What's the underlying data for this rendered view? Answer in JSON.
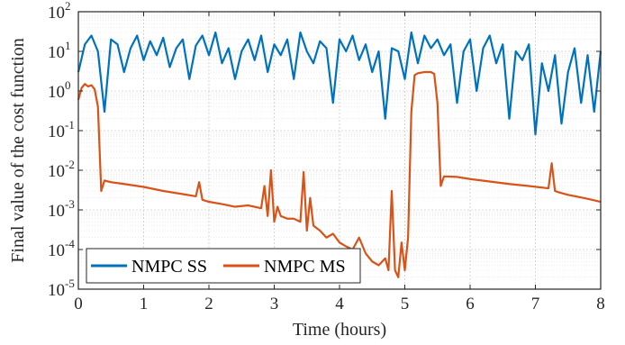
{
  "chart_data": {
    "type": "line",
    "title": "",
    "xlabel": "Time (hours)",
    "ylabel": "Final value of the cost function",
    "xlim": [
      0,
      8
    ],
    "ylim_exponents": [
      -5,
      2
    ],
    "yscale": "log",
    "grid": true,
    "minor_grid": true,
    "legend_position": "bottom-left",
    "x_ticks": [
      "0",
      "1",
      "2",
      "3",
      "4",
      "5",
      "6",
      "7",
      "8"
    ],
    "y_ticks": [
      {
        "base": "10",
        "exp": "-5"
      },
      {
        "base": "10",
        "exp": "-4"
      },
      {
        "base": "10",
        "exp": "-3"
      },
      {
        "base": "10",
        "exp": "-2"
      },
      {
        "base": "10",
        "exp": "-1"
      },
      {
        "base": "10",
        "exp": "0"
      },
      {
        "base": "10",
        "exp": "1"
      },
      {
        "base": "10",
        "exp": "2"
      }
    ],
    "series": [
      {
        "name": "NMPC SS",
        "color": "#0072BD",
        "x": [
          0.0,
          0.1,
          0.2,
          0.3,
          0.4,
          0.5,
          0.6,
          0.7,
          0.8,
          0.9,
          1.0,
          1.1,
          1.2,
          1.3,
          1.4,
          1.5,
          1.6,
          1.7,
          1.8,
          1.9,
          2.0,
          2.1,
          2.2,
          2.3,
          2.4,
          2.5,
          2.6,
          2.7,
          2.8,
          2.9,
          3.0,
          3.1,
          3.2,
          3.3,
          3.4,
          3.5,
          3.6,
          3.7,
          3.8,
          3.9,
          4.0,
          4.1,
          4.2,
          4.3,
          4.4,
          4.5,
          4.6,
          4.7,
          4.8,
          4.9,
          5.0,
          5.1,
          5.2,
          5.3,
          5.4,
          5.5,
          5.6,
          5.7,
          5.8,
          5.9,
          6.0,
          6.1,
          6.2,
          6.3,
          6.4,
          6.5,
          6.6,
          6.7,
          6.8,
          6.9,
          7.0,
          7.1,
          7.2,
          7.3,
          7.4,
          7.5,
          7.6,
          7.7,
          7.8,
          7.9,
          8.0
        ],
        "y": [
          3.0,
          15,
          25,
          10,
          0.3,
          20,
          15,
          3,
          12,
          25,
          6,
          18,
          8,
          22,
          4,
          12,
          20,
          2,
          14,
          25,
          8,
          30,
          5,
          12,
          2,
          10,
          20,
          6,
          25,
          3,
          15,
          8,
          20,
          2,
          30,
          10,
          5,
          18,
          12,
          0.5,
          20,
          10,
          25,
          6,
          15,
          3,
          10,
          0.2,
          12,
          10,
          2,
          30,
          5,
          25,
          12,
          20,
          8,
          15,
          0.5,
          10,
          20,
          1,
          12,
          25,
          5,
          15,
          0.2,
          10,
          6,
          15,
          0.08,
          5,
          1,
          8,
          0.15,
          3,
          12,
          0.5,
          8,
          0.3,
          10
        ]
      },
      {
        "name": "NMPC MS",
        "color": "#D95319",
        "x": [
          0.0,
          0.05,
          0.1,
          0.15,
          0.2,
          0.25,
          0.3,
          0.35,
          0.4,
          0.5,
          0.7,
          1.0,
          1.3,
          1.6,
          1.8,
          1.85,
          1.9,
          2.0,
          2.2,
          2.4,
          2.6,
          2.8,
          2.85,
          2.9,
          2.95,
          3.0,
          3.05,
          3.1,
          3.2,
          3.3,
          3.4,
          3.45,
          3.5,
          3.55,
          3.6,
          3.7,
          3.8,
          3.9,
          4.0,
          4.1,
          4.2,
          4.3,
          4.4,
          4.5,
          4.6,
          4.7,
          4.75,
          4.8,
          4.85,
          4.9,
          4.95,
          5.0,
          5.05,
          5.1,
          5.15,
          5.2,
          5.3,
          5.4,
          5.45,
          5.5,
          5.55,
          5.6,
          5.8,
          6.0,
          6.3,
          6.6,
          6.9,
          7.2,
          7.25,
          7.3,
          7.35,
          7.5,
          7.8,
          8.0
        ],
        "y": [
          0.6,
          1.2,
          1.5,
          1.3,
          1.4,
          1.1,
          0.4,
          0.003,
          0.0055,
          0.005,
          0.0045,
          0.0038,
          0.003,
          0.0025,
          0.0022,
          0.005,
          0.0018,
          0.0016,
          0.0014,
          0.0012,
          0.0013,
          0.0011,
          0.004,
          0.0007,
          0.01,
          0.0005,
          0.0012,
          0.0007,
          0.0006,
          0.0006,
          0.0005,
          0.009,
          0.0003,
          0.002,
          0.0004,
          0.0003,
          0.0002,
          0.00025,
          0.00015,
          0.00012,
          0.0001,
          0.0002,
          8e-05,
          5e-05,
          4e-05,
          6e-05,
          3e-05,
          0.003,
          3e-05,
          2e-05,
          0.00015,
          3e-05,
          0.0002,
          0.3,
          2.5,
          2.8,
          3.0,
          3.0,
          2.7,
          0.5,
          0.004,
          0.007,
          0.0068,
          0.006,
          0.0052,
          0.0045,
          0.004,
          0.0035,
          0.015,
          0.003,
          0.0028,
          0.0024,
          0.0019,
          0.0016
        ]
      }
    ]
  }
}
